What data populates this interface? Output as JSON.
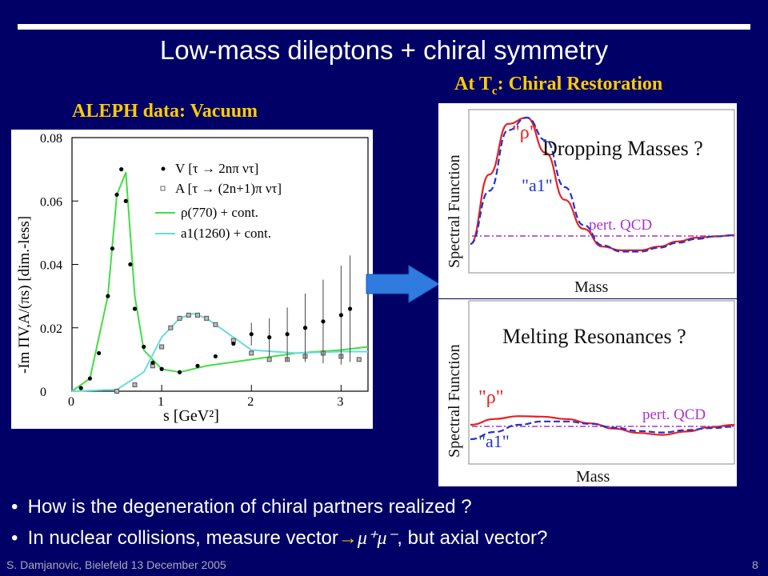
{
  "slide": {
    "title": "Low-mass dileptons + chiral symmetry",
    "aleph_header": "ALEPH data: Vacuum",
    "tc_header_prefix": "At T",
    "tc_header_sub": "c",
    "tc_header_suffix": ": Chiral Restoration",
    "bullets": [
      {
        "text": "How is the degeneration of chiral partners realized ?"
      },
      {
        "text_before": "In nuclear collisions, measure vector",
        "arrow": "→",
        "mu_text": "μ⁺μ⁻",
        "text_after": ", but axial vector?"
      }
    ],
    "footer_left": "S. Damjanovic, Bielefeld 13 December 2005",
    "page_number": "8",
    "colors": {
      "background": "#000066",
      "header": "#ffcc00",
      "arrow": "#2f7be0"
    },
    "icons": {
      "arrow": "right-arrow-icon"
    }
  },
  "aleph_plot": {
    "y_ticks": [
      "0.08",
      "0.06",
      "0.04",
      "0.02",
      "0"
    ],
    "x_ticks": [
      "0",
      "1",
      "2",
      "3"
    ],
    "ylabel": "-Im ΠV,A/(πs) [dim.-less]",
    "xlabel": "s [GeV²]",
    "legend": [
      "V [τ → 2nπ ντ]",
      "A [τ → (2n+1)π ντ]",
      "ρ(770) + cont.",
      "a1(1260) + cont."
    ]
  },
  "dropping_plot": {
    "title": "Dropping Masses ?",
    "rho": "\"ρ\"",
    "a1": "\"a1\"",
    "pqcd": "pert. QCD",
    "ylabel": "Spectral  Function",
    "xlabel": "Mass"
  },
  "melting_plot": {
    "title": "Melting Resonances ?",
    "rho": "\"ρ\"",
    "a1": "\"a1\"",
    "pqcd": "pert. QCD",
    "ylabel": "Spectral  Function",
    "xlabel": "Mass"
  },
  "chart_data": [
    {
      "type": "scatter",
      "title": "",
      "xlabel": "s [GeV²]",
      "ylabel": "-Im ΠV,A/(πs) [dim.-less]",
      "xlim": [
        0,
        3.3
      ],
      "ylim": [
        0,
        0.08
      ],
      "series": [
        {
          "name": "V [τ → 2nπ ντ]",
          "x": [
            0.1,
            0.2,
            0.3,
            0.4,
            0.45,
            0.5,
            0.55,
            0.6,
            0.65,
            0.7,
            0.8,
            0.9,
            1.0,
            1.2,
            1.4,
            1.6,
            1.8,
            2.0,
            2.2,
            2.4,
            2.6,
            2.8,
            3.0,
            3.1
          ],
          "y": [
            0.001,
            0.004,
            0.012,
            0.03,
            0.045,
            0.062,
            0.07,
            0.06,
            0.04,
            0.026,
            0.014,
            0.009,
            0.007,
            0.006,
            0.008,
            0.011,
            0.015,
            0.018,
            0.017,
            0.018,
            0.02,
            0.022,
            0.024,
            0.026
          ]
        },
        {
          "name": "A [τ → (2n+1)π ντ]",
          "x": [
            0.5,
            0.7,
            0.9,
            1.0,
            1.1,
            1.2,
            1.3,
            1.4,
            1.5,
            1.6,
            1.8,
            2.0,
            2.2,
            2.4,
            2.6,
            2.8,
            3.0,
            3.2
          ],
          "y": [
            0.0,
            0.002,
            0.008,
            0.014,
            0.02,
            0.023,
            0.024,
            0.024,
            0.023,
            0.021,
            0.016,
            0.012,
            0.01,
            0.01,
            0.011,
            0.012,
            0.011,
            0.01
          ]
        },
        {
          "name": "ρ(770) + cont.",
          "x": [
            0,
            0.2,
            0.4,
            0.5,
            0.6,
            0.7,
            0.8,
            1.0,
            1.2,
            1.5,
            2.0,
            2.5,
            3.0,
            3.3
          ],
          "y": [
            0,
            0.004,
            0.03,
            0.062,
            0.069,
            0.03,
            0.013,
            0.007,
            0.006,
            0.008,
            0.01,
            0.012,
            0.013,
            0.014
          ]
        },
        {
          "name": "a1(1260) + cont.",
          "x": [
            0,
            0.5,
            0.8,
            1.0,
            1.2,
            1.35,
            1.5,
            1.8,
            2.0,
            2.5,
            3.0,
            3.3
          ],
          "y": [
            0,
            0.0005,
            0.006,
            0.017,
            0.023,
            0.0245,
            0.023,
            0.017,
            0.013,
            0.012,
            0.0125,
            0.0125
          ]
        }
      ]
    },
    {
      "type": "line",
      "title": "Dropping Masses ?",
      "xlabel": "Mass",
      "ylabel": "Spectral  Function",
      "series": [
        {
          "name": "\"ρ\"",
          "values": [
            0.0,
            0.55,
            0.95,
            1.0,
            0.72,
            0.35,
            0.12,
            -0.02,
            -0.05,
            -0.05,
            -0.02,
            0.02,
            0.05,
            0.06,
            0.07
          ]
        },
        {
          "name": "\"a1\"",
          "values": [
            0.0,
            0.42,
            0.9,
            1.0,
            0.82,
            0.45,
            0.15,
            -0.01,
            -0.06,
            -0.06,
            -0.03,
            0.01,
            0.04,
            0.06,
            0.07
          ]
        },
        {
          "name": "pert. QCD",
          "values": [
            0.06,
            0.06,
            0.06,
            0.06,
            0.06,
            0.06,
            0.06,
            0.06,
            0.06,
            0.06,
            0.06,
            0.06,
            0.06,
            0.06,
            0.06
          ]
        }
      ]
    },
    {
      "type": "line",
      "title": "Melting Resonances ?",
      "xlabel": "Mass",
      "ylabel": "Spectral  Function",
      "series": [
        {
          "name": "\"ρ\"",
          "values": [
            0.3,
            0.42,
            0.48,
            0.47,
            0.42,
            0.33,
            0.22,
            0.13,
            0.09,
            0.16,
            0.25,
            0.3
          ]
        },
        {
          "name": "\"a1\"",
          "values": [
            0.0,
            0.15,
            0.3,
            0.37,
            0.37,
            0.32,
            0.24,
            0.17,
            0.14,
            0.19,
            0.23,
            0.26
          ]
        },
        {
          "name": "pert. QCD",
          "values": [
            0.22,
            0.22,
            0.22,
            0.22,
            0.22,
            0.22,
            0.22,
            0.22,
            0.22,
            0.22,
            0.22,
            0.22
          ]
        }
      ]
    }
  ]
}
